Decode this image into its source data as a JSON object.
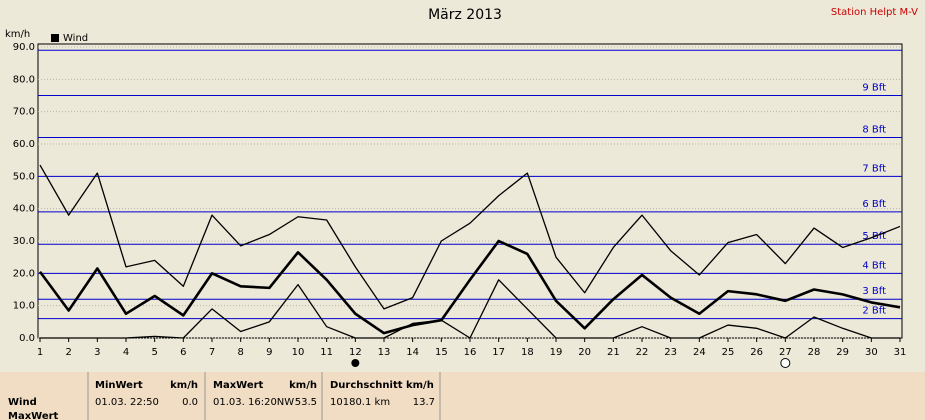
{
  "chart_data": {
    "type": "line",
    "title": "März 2013",
    "station": "Station Helpt M-V",
    "y_label": "km/h",
    "legend": "Wind",
    "legend_color": "#000000",
    "x": [
      1,
      2,
      3,
      4,
      5,
      6,
      7,
      8,
      9,
      10,
      11,
      12,
      13,
      14,
      15,
      16,
      17,
      18,
      19,
      20,
      21,
      22,
      23,
      24,
      25,
      26,
      27,
      28,
      29,
      30,
      31
    ],
    "xlim": [
      1,
      31
    ],
    "xticks": [
      1,
      2,
      3,
      4,
      5,
      6,
      7,
      8,
      9,
      10,
      11,
      12,
      13,
      14,
      15,
      16,
      17,
      18,
      19,
      20,
      21,
      22,
      23,
      24,
      25,
      26,
      27,
      28,
      29,
      30,
      31
    ],
    "ylim": [
      0,
      90
    ],
    "yticks": [
      {
        "value": 0,
        "label": "0.0"
      },
      {
        "value": 10,
        "label": "10.0"
      },
      {
        "value": 20,
        "label": "20.0"
      },
      {
        "value": 30,
        "label": "30.0"
      },
      {
        "value": 40,
        "label": "40.0"
      },
      {
        "value": 50,
        "label": "50.0"
      },
      {
        "value": 60,
        "label": "60.0"
      },
      {
        "value": 70,
        "label": "70.0"
      },
      {
        "value": 80,
        "label": "80.0"
      },
      {
        "value": 90,
        "label": "90.0"
      }
    ],
    "grid": true,
    "reference_lines": [
      {
        "value": 6,
        "label": "2 Bft"
      },
      {
        "value": 12,
        "label": "3 Bft"
      },
      {
        "value": 20,
        "label": "4 Bft"
      },
      {
        "value": 29,
        "label": "5 Bft"
      },
      {
        "value": 39,
        "label": "6 Bft"
      },
      {
        "value": 50,
        "label": "7 Bft"
      },
      {
        "value": 62,
        "label": "8 Bft"
      },
      {
        "value": 75,
        "label": "9 Bft"
      },
      {
        "value": 89,
        "label": null
      }
    ],
    "reference_color": "#0000cc",
    "series": [
      {
        "color": "#000000",
        "line_width": 1.3,
        "values": [
          53.5,
          38,
          51,
          22,
          24,
          16,
          38,
          28.5,
          32,
          37.5,
          36.5,
          22,
          9,
          12.5,
          30,
          35.5,
          44,
          51,
          25,
          14,
          28,
          38,
          27,
          19.5,
          29.5,
          32,
          23,
          34,
          28,
          31,
          34.5
        ]
      },
      {
        "color": "#000000",
        "line_width": 2.6,
        "values": [
          20.5,
          8.5,
          21.5,
          7.5,
          13,
          7,
          20,
          16,
          15.5,
          26.5,
          18,
          7.5,
          1.5,
          4,
          5.5,
          18,
          30,
          26,
          11.5,
          3,
          12,
          19.5,
          12.5,
          7.5,
          14.5,
          13.5,
          11.5,
          15,
          13.5,
          11,
          9.5
        ]
      },
      {
        "color": "#000000",
        "line_width": 1.3,
        "values": [
          0,
          0,
          0,
          0,
          0.5,
          0,
          9,
          2,
          5,
          16.5,
          3.5,
          0,
          0,
          4.5,
          5.5,
          0,
          18,
          9,
          0,
          0,
          0,
          3.5,
          0,
          0,
          4,
          3,
          0,
          6.5,
          3,
          0,
          0
        ]
      }
    ]
  },
  "summary": {
    "row_labels": [
      "Wind",
      "MaxWert"
    ],
    "min": {
      "title": "MinWert",
      "unit": "km/h",
      "time": "01.03.  22:50",
      "value": "0.0"
    },
    "max": {
      "title": "MaxWert",
      "unit": "km/h",
      "time": "01.03.  16:20NW",
      "value": "53.5"
    },
    "avg": {
      "title": "Durchschnitt km/h",
      "distance": "10180.1 km",
      "value": "13.7"
    }
  }
}
